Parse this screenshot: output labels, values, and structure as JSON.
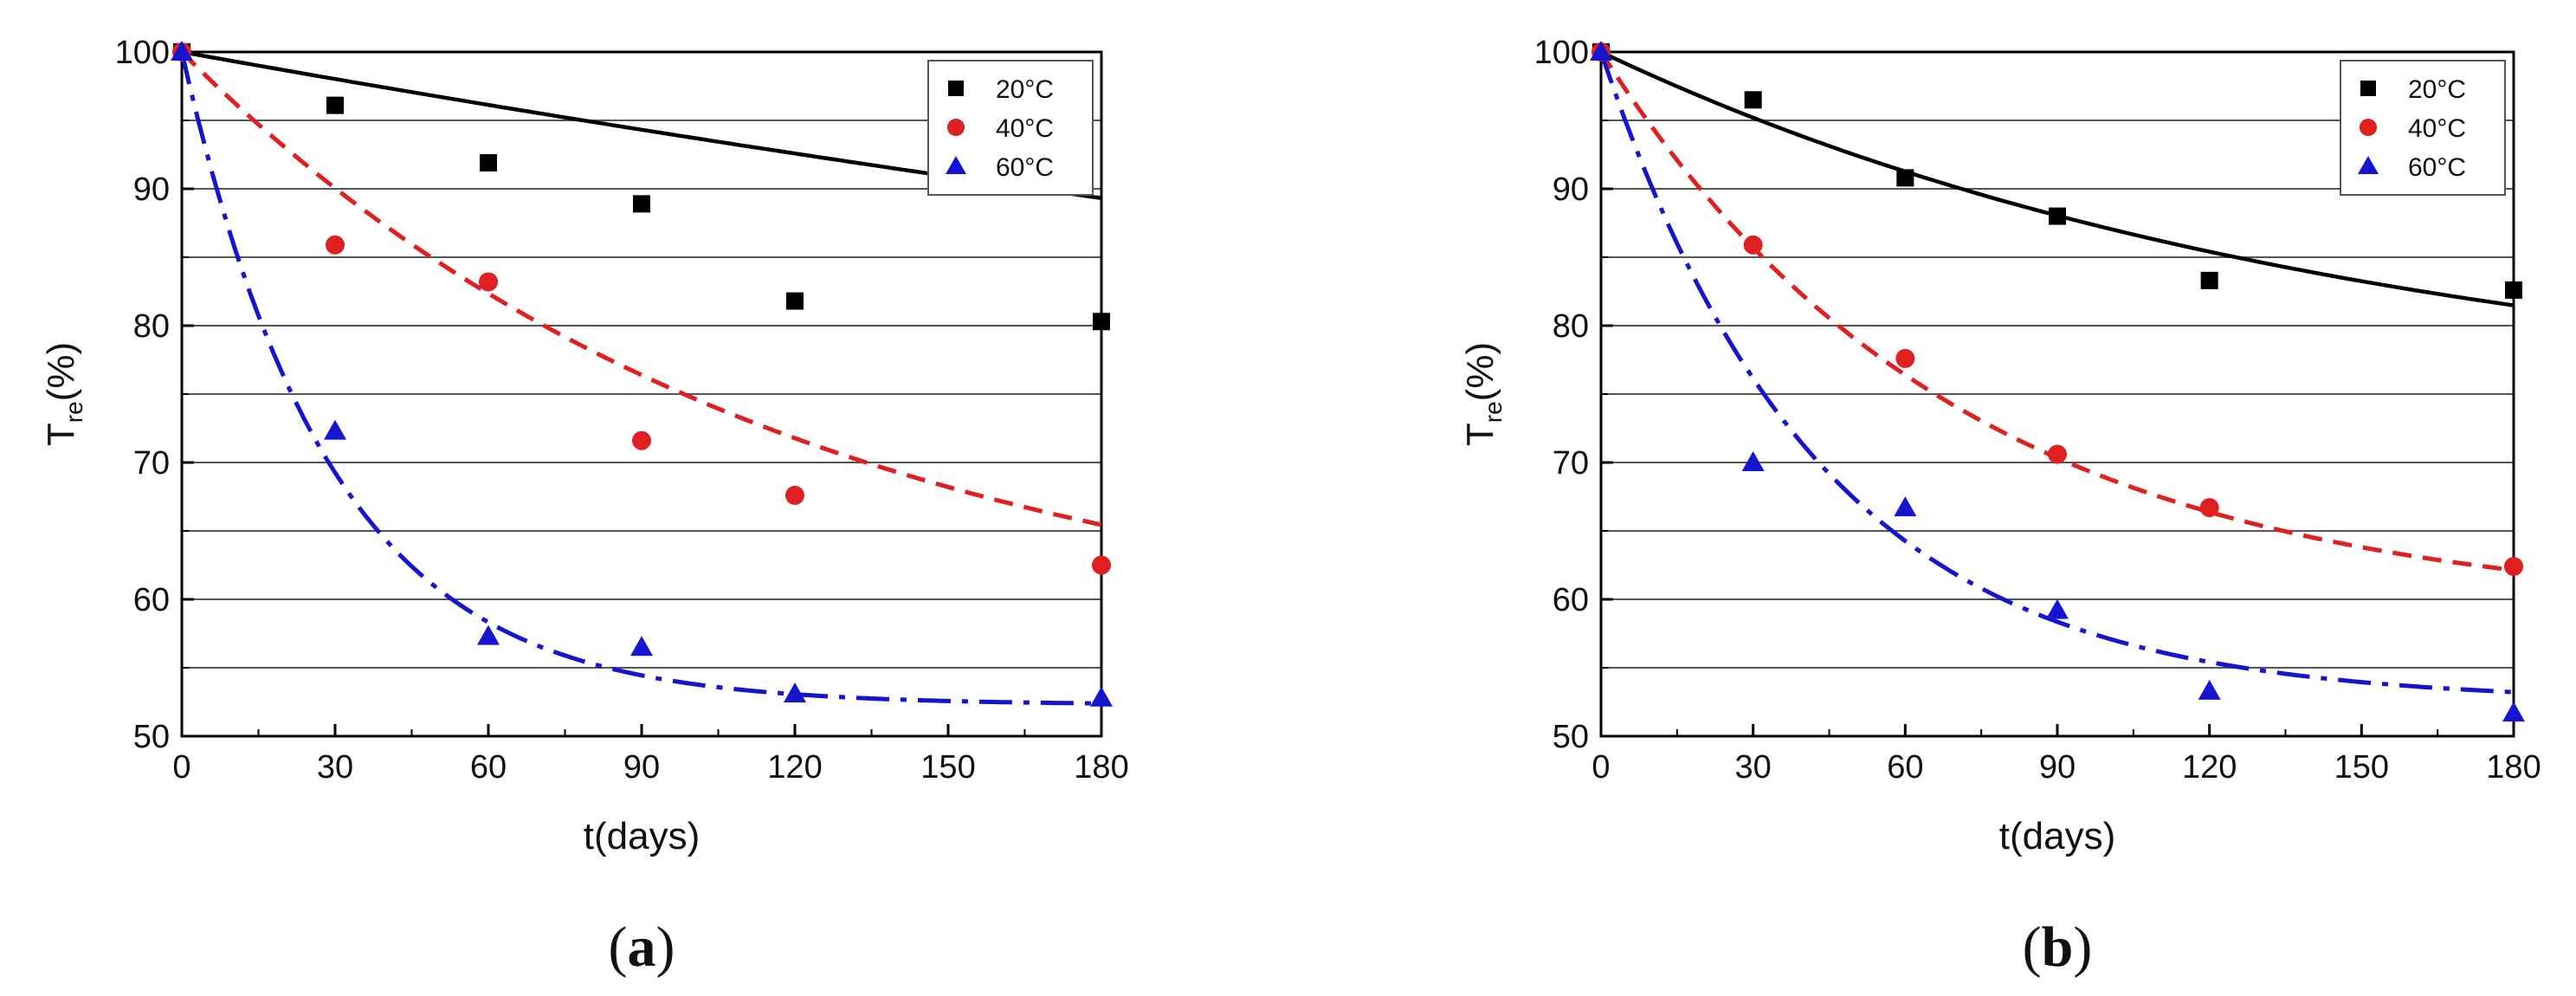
{
  "chart_data": [
    {
      "type": "scatter",
      "panel_label": "a",
      "xlabel": "t(days)",
      "ylabel_main": "T",
      "ylabel_sub": "re",
      "ylabel_suffix": "(%)",
      "xlim": [
        0,
        180
      ],
      "ylim": [
        50,
        100
      ],
      "xticks": [
        0,
        30,
        60,
        90,
        120,
        150,
        180
      ],
      "yticks": [
        50,
        60,
        70,
        80,
        90,
        100
      ],
      "grid": "horizontal",
      "legend_position": "top-right",
      "series": [
        {
          "name": "20°C",
          "marker": "square",
          "color": "#000000",
          "line_style": "solid",
          "x": [
            0,
            30,
            60,
            90,
            120,
            180
          ],
          "y": [
            100,
            96.1,
            91.9,
            88.9,
            81.8,
            80.3
          ],
          "fit": {
            "y0": 100,
            "A": 47.1,
            "tau": 700,
            "x": [
              0,
              30,
              60,
              90,
              120,
              150,
              180
            ]
          }
        },
        {
          "name": "40°C",
          "marker": "circle",
          "color": "#e02020",
          "line_style": "dashed",
          "x": [
            0,
            30,
            60,
            90,
            120,
            180
          ],
          "y": [
            100,
            85.9,
            83.2,
            71.6,
            67.6,
            62.5
          ],
          "fit": {
            "y0": 100,
            "A": 44,
            "tau": 117,
            "x": [
              0,
              30,
              60,
              90,
              120,
              150,
              180
            ]
          }
        },
        {
          "name": "60°C",
          "marker": "triangle",
          "color": "#1515d0",
          "line_style": "dashdot",
          "x": [
            0,
            30,
            60,
            90,
            120,
            180
          ],
          "y": [
            100,
            72.3,
            57.3,
            56.5,
            53.1,
            52.8
          ],
          "fit": {
            "y0": 100,
            "A": 47.7,
            "tau": 29,
            "x": [
              0,
              30,
              60,
              90,
              120,
              150,
              180
            ]
          }
        }
      ]
    },
    {
      "type": "scatter",
      "panel_label": "b",
      "xlabel": "t(days)",
      "ylabel_main": "T",
      "ylabel_sub": "re",
      "ylabel_suffix": "(%)",
      "xlim": [
        0,
        180
      ],
      "ylim": [
        50,
        100
      ],
      "xticks": [
        0,
        30,
        60,
        90,
        120,
        150,
        180
      ],
      "yticks": [
        50,
        60,
        70,
        80,
        90,
        100
      ],
      "grid": "horizontal",
      "legend_position": "top-right",
      "series": [
        {
          "name": "20°C",
          "marker": "square",
          "color": "#000000",
          "line_style": "solid",
          "x": [
            0,
            30,
            60,
            90,
            120,
            180
          ],
          "y": [
            100,
            96.5,
            90.8,
            88.0,
            83.3,
            82.6
          ],
          "fit": {
            "y0": 100,
            "A": 26.5,
            "tau": 150,
            "x": [
              0,
              30,
              60,
              90,
              120,
              150,
              180
            ]
          }
        },
        {
          "name": "40°C",
          "marker": "circle",
          "color": "#e02020",
          "line_style": "dashed",
          "x": [
            0,
            30,
            60,
            90,
            120,
            180
          ],
          "y": [
            100,
            85.9,
            77.6,
            70.6,
            66.7,
            62.4
          ],
          "fit": {
            "y0": 100,
            "A": 41,
            "tau": 70,
            "x": [
              0,
              30,
              60,
              90,
              120,
              150,
              180
            ]
          }
        },
        {
          "name": "60°C",
          "marker": "triangle",
          "color": "#1515d0",
          "line_style": "dashdot",
          "x": [
            0,
            30,
            60,
            90,
            120,
            180
          ],
          "y": [
            100,
            70.0,
            66.7,
            59.2,
            53.3,
            51.7
          ],
          "fit": {
            "y0": 100,
            "A": 47.5,
            "tau": 43,
            "x": [
              0,
              30,
              60,
              90,
              120,
              150,
              180
            ]
          }
        }
      ]
    }
  ]
}
